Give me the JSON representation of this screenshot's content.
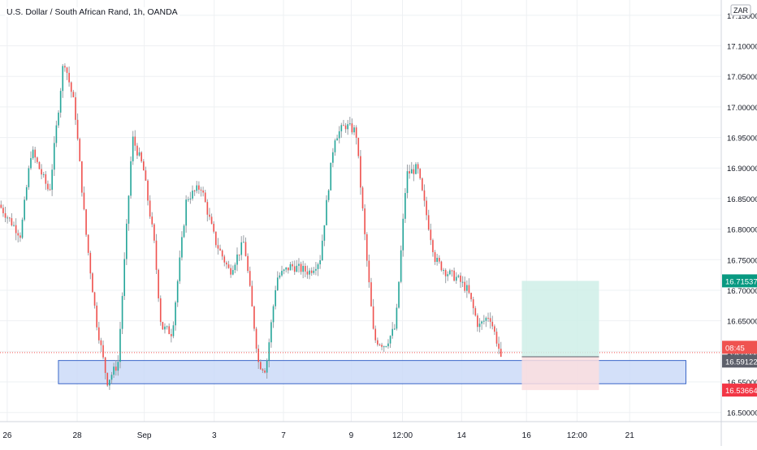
{
  "header": {
    "symbol_title": "U.S. Dollar / South African Rand, 1h, OANDA"
  },
  "price_axis": {
    "currency": "ZAR"
  },
  "chart_data": {
    "type": "candlestick",
    "title": "U.S. Dollar / South African Rand, 1h, OANDA",
    "y_ticks": [
      "16.50000",
      "16.55000",
      "16.60000",
      "16.65000",
      "16.70000",
      "16.75000",
      "16.80000",
      "16.85000",
      "16.90000",
      "16.95000",
      "17.00000",
      "17.05000",
      "17.10000",
      "17.15000"
    ],
    "ylim": [
      16.485,
      17.175
    ],
    "x_ticks": [
      {
        "label": "26",
        "t": 0.01
      },
      {
        "label": "28",
        "t": 0.107
      },
      {
        "label": "Sep",
        "t": 0.2
      },
      {
        "label": "3",
        "t": 0.297
      },
      {
        "label": "7",
        "t": 0.393
      },
      {
        "label": "9",
        "t": 0.487
      },
      {
        "label": "12:00",
        "t": 0.558
      },
      {
        "label": "14",
        "t": 0.64
      },
      {
        "label": "16",
        "t": 0.73
      },
      {
        "label": "12:00",
        "t": 0.8
      },
      {
        "label": "21",
        "t": 0.873
      }
    ],
    "price_path": [
      [
        0.0,
        16.84
      ],
      [
        0.03,
        16.79
      ],
      [
        0.045,
        16.93
      ],
      [
        0.07,
        16.86
      ],
      [
        0.09,
        17.08
      ],
      [
        0.105,
        17.0
      ],
      [
        0.12,
        16.8
      ],
      [
        0.135,
        16.65
      ],
      [
        0.15,
        16.55
      ],
      [
        0.165,
        16.58
      ],
      [
        0.185,
        16.95
      ],
      [
        0.2,
        16.9
      ],
      [
        0.215,
        16.78
      ],
      [
        0.225,
        16.64
      ],
      [
        0.24,
        16.63
      ],
      [
        0.26,
        16.85
      ],
      [
        0.28,
        16.87
      ],
      [
        0.3,
        16.78
      ],
      [
        0.32,
        16.73
      ],
      [
        0.34,
        16.78
      ],
      [
        0.36,
        16.58
      ],
      [
        0.37,
        16.57
      ],
      [
        0.385,
        16.72
      ],
      [
        0.405,
        16.74
      ],
      [
        0.43,
        16.73
      ],
      [
        0.445,
        16.75
      ],
      [
        0.465,
        16.95
      ],
      [
        0.48,
        16.97
      ],
      [
        0.495,
        16.96
      ],
      [
        0.51,
        16.75
      ],
      [
        0.52,
        16.62
      ],
      [
        0.535,
        16.61
      ],
      [
        0.55,
        16.64
      ],
      [
        0.565,
        16.89
      ],
      [
        0.58,
        16.9
      ],
      [
        0.59,
        16.84
      ],
      [
        0.605,
        16.75
      ],
      [
        0.62,
        16.73
      ],
      [
        0.635,
        16.72
      ],
      [
        0.65,
        16.7
      ],
      [
        0.665,
        16.64
      ],
      [
        0.68,
        16.66
      ],
      [
        0.692,
        16.61
      ],
      [
        0.696,
        16.59
      ]
    ],
    "last_bar_time": "08:45",
    "last_price": "16.59122",
    "take_profit": "16.71537",
    "stop_loss": "16.53664",
    "support_zone": [
      16.547,
      16.585
    ],
    "position_tool": {
      "entry": 16.59122,
      "target": 16.71537,
      "stop": 16.53664
    },
    "grid": true,
    "colors": {
      "up": "#26a69a",
      "down": "#ef5350",
      "wick": "#9aa0a6",
      "grid": "#eef0f3",
      "zone_fill": "#c8d8f8",
      "zone_border": "#3a66c8",
      "tp_fill": "#cfeee8",
      "tp_label": "#089981",
      "sl_fill": "#fbdedf",
      "sl_label": "#f23645",
      "last_label": "#5d606b",
      "price_line": "#ef5350"
    }
  }
}
